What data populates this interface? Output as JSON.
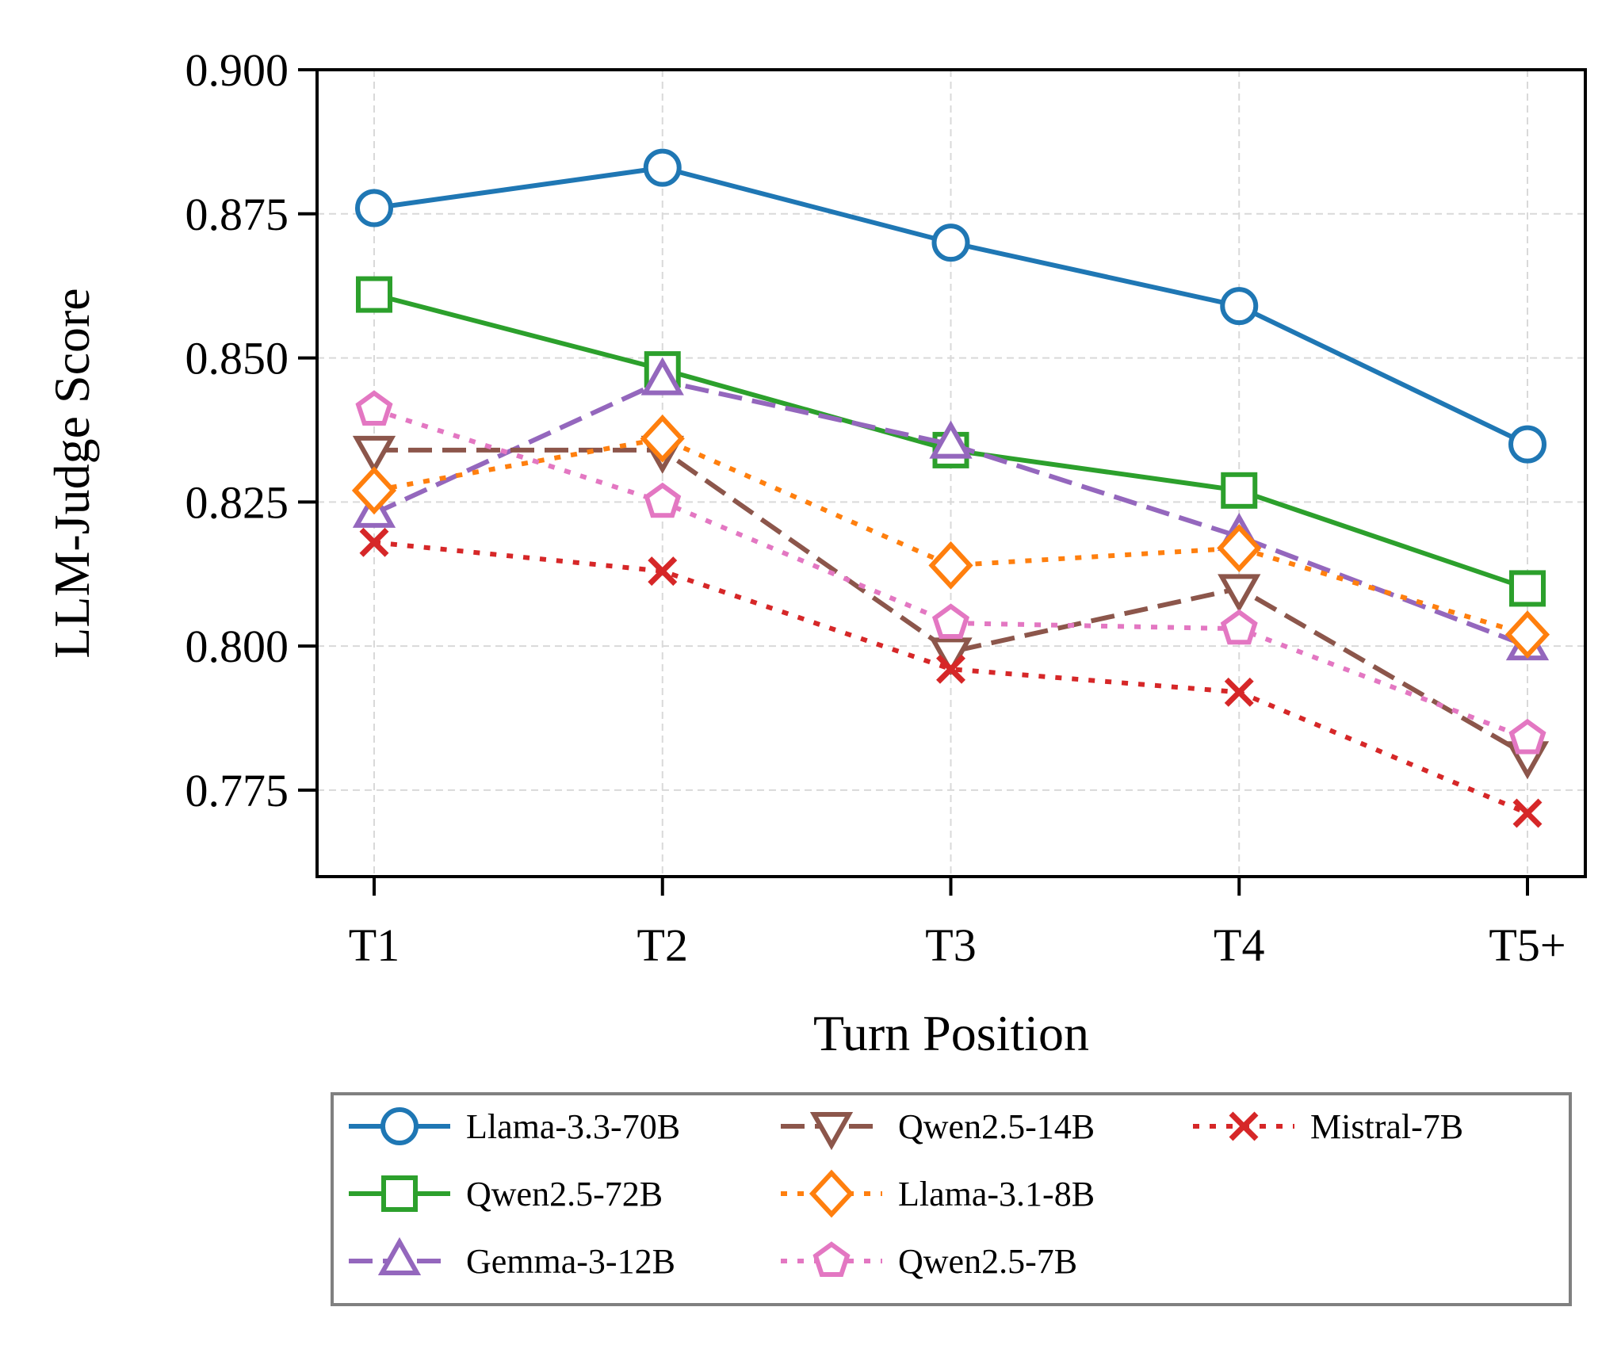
{
  "chart_data": {
    "type": "line",
    "title": "",
    "xlabel": "Turn Position",
    "ylabel": "LLM-Judge Score",
    "categories": [
      "T1",
      "T2",
      "T3",
      "T4",
      "T5+"
    ],
    "ylim": [
      0.76,
      0.9
    ],
    "yticks": [
      0.775,
      0.8,
      0.825,
      0.85,
      0.875,
      0.9
    ],
    "ytick_labels": [
      "0.775",
      "0.800",
      "0.825",
      "0.850",
      "0.875",
      "0.900"
    ],
    "grid": true,
    "legend_position": "below",
    "series": [
      {
        "name": "Llama-3.3-70B",
        "values": [
          0.876,
          0.883,
          0.87,
          0.859,
          0.835
        ],
        "color": "#1f77b4",
        "marker": "circle",
        "linestyle": "solid"
      },
      {
        "name": "Qwen2.5-72B",
        "values": [
          0.861,
          0.848,
          0.834,
          0.827,
          0.81
        ],
        "color": "#2ca02c",
        "marker": "square",
        "linestyle": "solid"
      },
      {
        "name": "Gemma-3-12B",
        "values": [
          0.823,
          0.846,
          0.835,
          0.819,
          0.8
        ],
        "color": "#9467bd",
        "marker": "triangle-up",
        "linestyle": "dashed"
      },
      {
        "name": "Qwen2.5-14B",
        "values": [
          0.834,
          0.834,
          0.799,
          0.81,
          0.781
        ],
        "color": "#8c564b",
        "marker": "triangle-down",
        "linestyle": "dashed"
      },
      {
        "name": "Llama-3.1-8B",
        "values": [
          0.827,
          0.836,
          0.814,
          0.817,
          0.802
        ],
        "color": "#ff7f0e",
        "marker": "diamond",
        "linestyle": "dotted"
      },
      {
        "name": "Qwen2.5-7B",
        "values": [
          0.841,
          0.825,
          0.804,
          0.803,
          0.784
        ],
        "color": "#e377c2",
        "marker": "pentagon",
        "linestyle": "dotted"
      },
      {
        "name": "Mistral-7B",
        "values": [
          0.818,
          0.813,
          0.796,
          0.792,
          0.771
        ],
        "color": "#d62728",
        "marker": "x",
        "linestyle": "dotted"
      }
    ]
  }
}
